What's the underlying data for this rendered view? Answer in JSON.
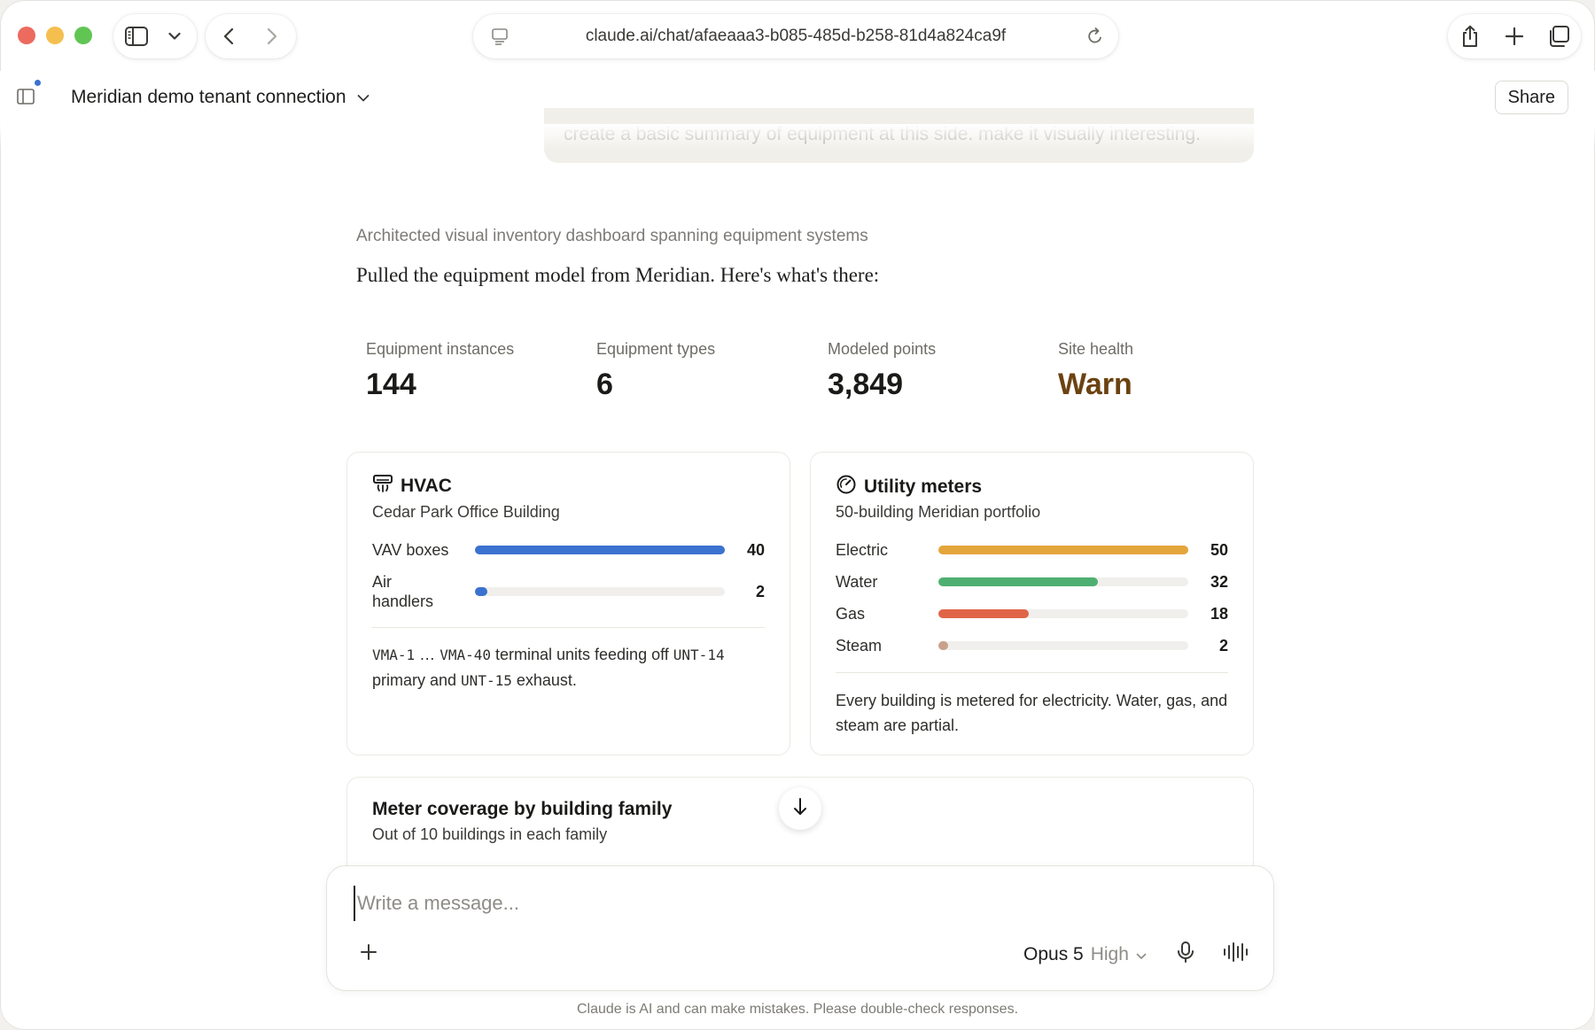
{
  "browser": {
    "url": "claude.ai/chat/afaeaaa3-b085-485d-b258-81d4a824ca9f",
    "traffic_colors": {
      "close": "#ec6a5e",
      "minimize": "#f4bf4f",
      "maximize": "#61c554"
    }
  },
  "header": {
    "chat_title": "Meridian demo tenant connection",
    "share_label": "Share"
  },
  "conversation": {
    "user_message": "create a basic summary of equipment at this side.  make it visually interesting.",
    "thinking_summary": "Architected visual inventory dashboard spanning equipment systems",
    "reply_intro": "Pulled the equipment model from Meridian. Here's what's there:"
  },
  "stats": [
    {
      "label": "Equipment instances",
      "value": "144"
    },
    {
      "label": "Equipment types",
      "value": "6"
    },
    {
      "label": "Modeled points",
      "value": "3,849"
    },
    {
      "label": "Site health",
      "value": "Warn",
      "color": "#6b4211"
    }
  ],
  "hvac_card": {
    "title": "HVAC",
    "icon": "air-conditioner-icon",
    "subtitle": "Cedar Park Office Building",
    "max": 40,
    "rows": [
      {
        "label": "VAV boxes",
        "value": 40,
        "value_text": "40",
        "color": "#3b72d0"
      },
      {
        "label": "Air handlers",
        "value": 2,
        "value_text": "2",
        "color": "#3b72d0"
      }
    ],
    "note": {
      "c1": "VMA-1",
      "t1": " … ",
      "c2": "VMA-40",
      "t2": " terminal units feeding off ",
      "c3": "UNT-14",
      "t3": "primary and ",
      "c4": "UNT-15",
      "t4": " exhaust."
    }
  },
  "utility_card": {
    "title": "Utility meters",
    "icon": "gauge-icon",
    "subtitle": "50-building Meridian portfolio",
    "max": 50,
    "rows": [
      {
        "label": "Electric",
        "value": 50,
        "value_text": "50",
        "color": "#e4a53b"
      },
      {
        "label": "Water",
        "value": 32,
        "value_text": "32",
        "color": "#4faf72"
      },
      {
        "label": "Gas",
        "value": 18,
        "value_text": "18",
        "color": "#e06548"
      },
      {
        "label": "Steam",
        "value": 2,
        "value_text": "2",
        "color": "#c9a08a"
      }
    ],
    "note": "Every building is metered for electricity. Water, gas, and steam are partial."
  },
  "coverage_card": {
    "title": "Meter coverage by building family",
    "subtitle": "Out of 10 buildings in each family"
  },
  "composer": {
    "placeholder": "Write a message...",
    "model": "Opus 5",
    "effort": "High"
  },
  "footer": {
    "disclaimer": "Claude is AI and can make mistakes. Please double-check responses."
  }
}
